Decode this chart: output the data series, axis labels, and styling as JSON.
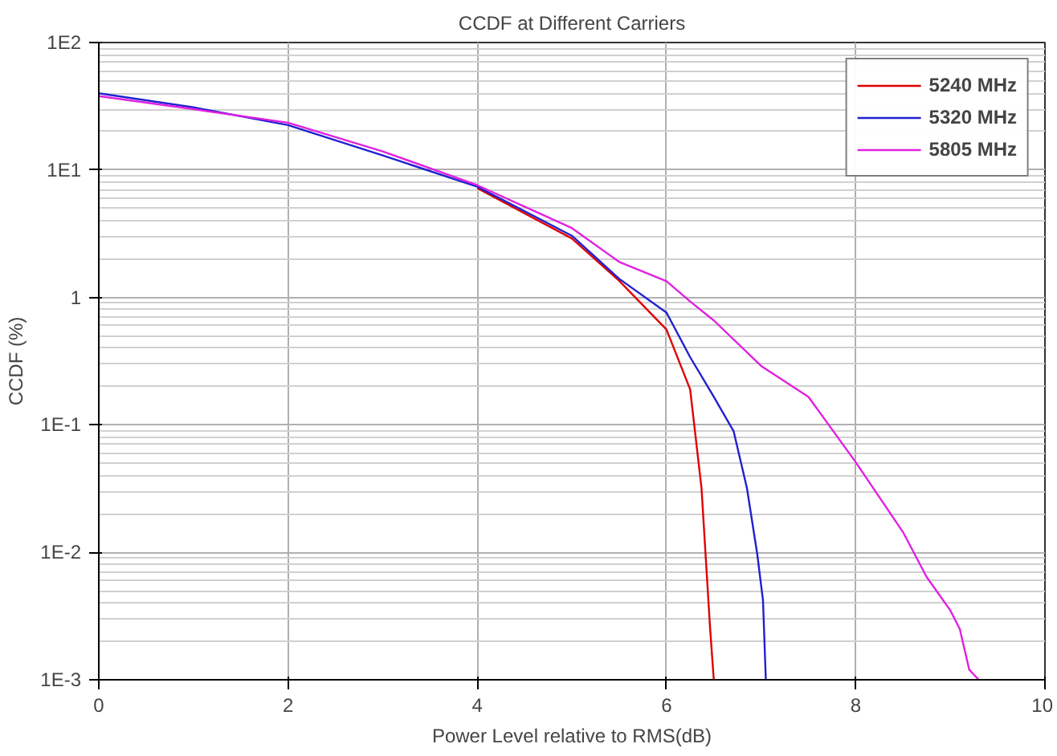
{
  "chart_data": {
    "type": "line",
    "title": "CCDF at Different Carriers",
    "xlabel": "Power Level relative to RMS(dB)",
    "ylabel": "CCDF (%)",
    "xlim": [
      0,
      10
    ],
    "xticks": [
      0,
      2,
      4,
      6,
      8,
      10
    ],
    "ylim": [
      0.001,
      100
    ],
    "yticks": [
      {
        "value": 0.001,
        "label": "1E-3"
      },
      {
        "value": 0.01,
        "label": "1E-2"
      },
      {
        "value": 0.1,
        "label": "1E-1"
      },
      {
        "value": 1,
        "label": "1"
      },
      {
        "value": 10,
        "label": "1E1"
      },
      {
        "value": 100,
        "label": "1E2"
      }
    ],
    "log": "y",
    "grid": true,
    "legend": "top right",
    "series": [
      {
        "name": "5240 MHz",
        "color": "#e00000",
        "x": [
          4,
          5,
          5.5,
          6,
          6.25,
          6.37,
          6.46,
          6.5
        ],
        "values": [
          7.2,
          2.9,
          1.35,
          0.56,
          0.19,
          0.032,
          0.0026,
          0.001
        ]
      },
      {
        "name": "5320 MHz",
        "color": "#2020d0",
        "x": [
          0,
          1,
          2,
          3,
          4,
          5,
          5.5,
          6,
          6.25,
          6.5,
          6.71,
          6.85,
          6.96,
          7.02,
          7.05
        ],
        "values": [
          40,
          31,
          22.5,
          13,
          7.4,
          3.05,
          1.4,
          0.76,
          0.34,
          0.166,
          0.089,
          0.032,
          0.0096,
          0.0042,
          0.001
        ]
      },
      {
        "name": "5805 MHz",
        "color": "#e020e0",
        "x": [
          0,
          1,
          2,
          3,
          4,
          5,
          5.5,
          6,
          6.25,
          6.5,
          7,
          7.5,
          8,
          8.5,
          8.75,
          9,
          9.1,
          9.2,
          9.3
        ],
        "values": [
          38,
          30,
          23.5,
          14,
          7.6,
          3.5,
          1.9,
          1.34,
          0.93,
          0.66,
          0.29,
          0.166,
          0.051,
          0.0144,
          0.0064,
          0.0035,
          0.0025,
          0.0012,
          0.001
        ]
      }
    ]
  }
}
